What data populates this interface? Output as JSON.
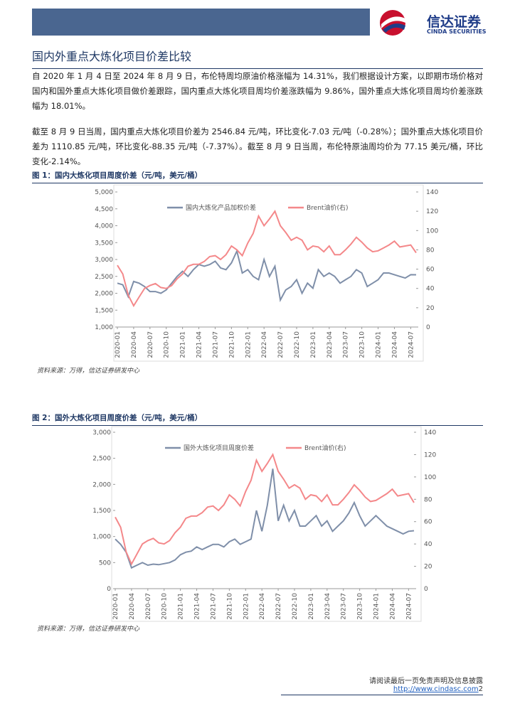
{
  "header": {
    "brand": "信达证券",
    "brand_en": "CINDA SECURITIES"
  },
  "section_title": "国内外重点大炼化项目价差比较",
  "paragraphs": [
    "自 2020 年 1 月 4 日至 2024 年 8 月 9 日，布伦特周均原油价格涨幅为 14.31%，我们根据设计方案，以即期市场价格对国内和国外重点大炼化项目做价差跟踪，国内重点大炼化项目周均价差涨跌幅为 9.86%，国外重点大炼化项目周均价差涨跌幅为 18.01%。",
    "截至 8 月 9 日当周，国内重点大炼化项目价差为 2546.84 元/吨，环比变化-7.03 元/吨（-0.28%）；国外重点大炼化项目价差为 1110.85 元/吨，环比变化-88.35 元/吨（-7.37%）。截至 8 月 9 日当周，布伦特原油周均价为 77.15 美元/桶，环比变化-2.14%。"
  ],
  "figures": [
    {
      "caption": "图 1：国内大炼化项目周度价差（元/吨，美元/桶）",
      "source": "资料来源：万得，信达证券研发中心"
    },
    {
      "caption": "图 2：国外大炼化项目周度价差（元/吨，美元/桶）",
      "source": "资料来源：万得，信达证券研发中心"
    }
  ],
  "chart_data": [
    {
      "type": "line",
      "legend": "top",
      "categories": [
        "2020-01",
        null,
        null,
        "2020-04",
        null,
        null,
        "2020-07",
        null,
        null,
        "2020-10",
        null,
        null,
        "2021-01",
        null,
        null,
        "2021-04",
        null,
        null,
        "2021-07",
        null,
        null,
        "2021-10",
        null,
        null,
        "2022-01",
        null,
        null,
        "2022-04",
        null,
        null,
        "2022-07",
        null,
        null,
        "2022-10",
        null,
        null,
        "2023-01",
        null,
        null,
        "2023-04",
        null,
        null,
        "2023-07",
        null,
        null,
        "2023-10",
        null,
        null,
        "2024-01",
        null,
        null,
        "2024-04",
        null,
        null,
        "2024-07",
        null
      ],
      "series": [
        {
          "name": "国内大炼化产品加权价差",
          "color": "#7f8fa9",
          "axis": "y",
          "values": [
            2300,
            2250,
            1900,
            2350,
            2300,
            2200,
            2050,
            2050,
            2000,
            2100,
            2300,
            2500,
            2650,
            2500,
            2700,
            2850,
            2800,
            2850,
            2950,
            2750,
            2700,
            2900,
            3250,
            2600,
            2700,
            2500,
            2400,
            3000,
            2500,
            2800,
            1800,
            2100,
            2200,
            2400,
            2000,
            2300,
            2150,
            2700,
            2500,
            2600,
            2500,
            2300,
            2400,
            2500,
            2700,
            2600,
            2200,
            2300,
            2400,
            2600,
            2600,
            2550,
            2500,
            2450,
            2550,
            2547
          ]
        },
        {
          "name": "Brent油价(右)",
          "color": "#f4888a",
          "axis": "y2",
          "values": [
            64,
            55,
            33,
            22,
            31,
            40,
            43,
            45,
            41,
            40,
            43,
            50,
            55,
            63,
            65,
            65,
            68,
            73,
            74,
            70,
            75,
            84,
            80,
            74,
            87,
            97,
            115,
            105,
            112,
            120,
            105,
            98,
            90,
            93,
            90,
            80,
            84,
            83,
            78,
            84,
            75,
            75,
            80,
            86,
            93,
            88,
            82,
            78,
            79,
            82,
            85,
            89,
            83,
            84,
            85,
            77
          ]
        }
      ],
      "ylim": [
        1000,
        5000
      ],
      "yticks": [
        {
          "value": 1000,
          "label": "1,000"
        },
        {
          "value": 1500,
          "label": "1,500"
        },
        {
          "value": 2000,
          "label": "2,000"
        },
        {
          "value": 2500,
          "label": "2,500"
        },
        {
          "value": 3000,
          "label": "3,000"
        },
        {
          "value": 3500,
          "label": "3,500"
        },
        {
          "value": 4000,
          "label": "4,000"
        },
        {
          "value": 4500,
          "label": "4,500"
        },
        {
          "value": 5000,
          "label": "5,000"
        }
      ],
      "y2lim": [
        0,
        140
      ],
      "y2ticks": [
        0,
        20,
        40,
        60,
        80,
        100,
        120,
        140
      ]
    },
    {
      "type": "line",
      "legend": "top",
      "categories": [
        "2020-01",
        null,
        null,
        "2020-04",
        null,
        null,
        "2020-07",
        null,
        null,
        "2020-10",
        null,
        null,
        "2021-01",
        null,
        null,
        "2021-04",
        null,
        null,
        "2021-07",
        null,
        null,
        "2021-10",
        null,
        null,
        "2022-01",
        null,
        null,
        "2022-04",
        null,
        null,
        "2022-07",
        null,
        null,
        "2022-10",
        null,
        null,
        "2023-01",
        null,
        null,
        "2023-04",
        null,
        null,
        "2023-07",
        null,
        null,
        "2023-10",
        null,
        null,
        "2024-01",
        null,
        null,
        "2024-04",
        null,
        null,
        "2024-07",
        null
      ],
      "series": [
        {
          "name": "国外大炼化项目周度价差",
          "color": "#7f8fa9",
          "axis": "y",
          "values": [
            950,
            850,
            700,
            400,
            450,
            500,
            450,
            470,
            460,
            480,
            500,
            550,
            650,
            700,
            720,
            800,
            750,
            800,
            850,
            850,
            800,
            900,
            950,
            850,
            900,
            950,
            1500,
            1100,
            1600,
            2300,
            1300,
            1600,
            1300,
            1500,
            1200,
            1200,
            1300,
            1400,
            1200,
            1300,
            1100,
            1200,
            1300,
            1450,
            1650,
            1400,
            1200,
            1300,
            1400,
            1300,
            1200,
            1150,
            1100,
            1050,
            1100,
            1111
          ]
        },
        {
          "name": "Brent油价(右)",
          "color": "#f4888a",
          "axis": "y2",
          "values": [
            64,
            55,
            33,
            22,
            31,
            40,
            43,
            45,
            41,
            40,
            43,
            50,
            55,
            63,
            65,
            65,
            68,
            73,
            74,
            70,
            75,
            84,
            80,
            74,
            87,
            97,
            115,
            105,
            112,
            120,
            105,
            98,
            90,
            93,
            90,
            80,
            84,
            83,
            78,
            84,
            75,
            75,
            80,
            86,
            93,
            88,
            82,
            78,
            79,
            82,
            85,
            89,
            83,
            84,
            85,
            77
          ]
        }
      ],
      "ylim": [
        0,
        3000
      ],
      "yticks": [
        0,
        500,
        {
          "value": 1000,
          "label": "1,000"
        },
        {
          "value": 1500,
          "label": "1,500"
        },
        {
          "value": 2000,
          "label": "2,000"
        },
        {
          "value": 2500,
          "label": "2,500"
        },
        {
          "value": 3000,
          "label": "3,000"
        }
      ],
      "y2lim": [
        0,
        140
      ],
      "y2ticks": [
        0,
        20,
        40,
        60,
        80,
        100,
        120,
        140
      ]
    }
  ],
  "footer": {
    "disclaimer": "请阅读最后一页免责声明及信息披露",
    "url": "http://www.cindasc.com",
    "page": "2"
  }
}
